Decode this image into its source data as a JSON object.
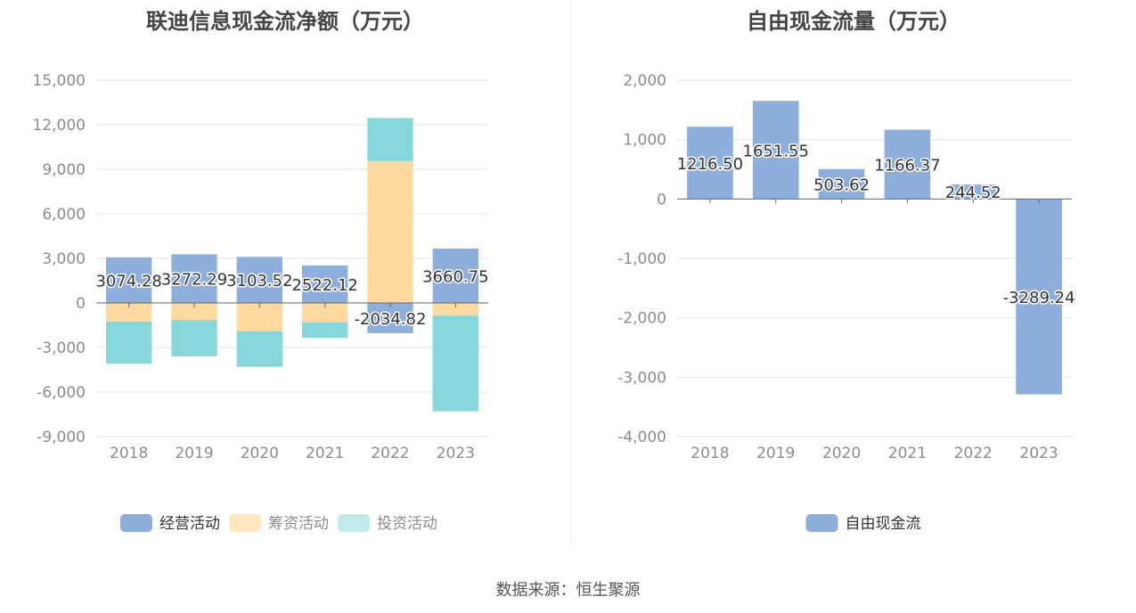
{
  "colors": {
    "operating": "#8eaedb",
    "financing": "#fed9a0",
    "investing": "#87d6d9",
    "free_cash": "#8eaedb",
    "grid": "#e3e6f0",
    "axis_text": "#8c8c8c",
    "title_text": "#444444"
  },
  "legend_icons": {
    "operating": "#8eaedb",
    "financing": "#ffe7c2",
    "investing": "#c3eaeb",
    "free_cash": "#8eaedb"
  },
  "footer": {
    "source": "数据来源：恒生聚源"
  },
  "chart_data": [
    {
      "type": "bar",
      "stacked": true,
      "title": "联迪信息现金流净额（万元）",
      "categories": [
        "2018",
        "2019",
        "2020",
        "2021",
        "2022",
        "2023"
      ],
      "ylim": [
        -9000,
        15000
      ],
      "yticks": [
        15000,
        12000,
        9000,
        6000,
        3000,
        0,
        -3000,
        -6000,
        -9000
      ],
      "ytick_labels": [
        "15,000",
        "12,000",
        "9,000",
        "6,000",
        "3,000",
        "0",
        "-3,000",
        "-6,000",
        "-9,000"
      ],
      "grid": true,
      "legend_position": "bottom",
      "series": [
        {
          "name": "经营活动",
          "key": "operating",
          "values": [
            3074.28,
            3272.29,
            3103.52,
            2522.12,
            -2034.82,
            3660.75
          ],
          "show_labels": true
        },
        {
          "name": "筹资活动",
          "key": "financing",
          "values": [
            -1250,
            -1150,
            -1900,
            -1300,
            9550,
            -850
          ],
          "show_labels": false
        },
        {
          "name": "投资活动",
          "key": "investing",
          "values": [
            -2850,
            -2450,
            -2400,
            -1050,
            2900,
            -6450
          ],
          "show_labels": false
        }
      ],
      "data_labels": [
        "3074.28",
        "3272.29",
        "3103.52",
        "2522.12",
        "-2034.82",
        "3660.75"
      ]
    },
    {
      "type": "bar",
      "title": "自由现金流量（万元）",
      "categories": [
        "2018",
        "2019",
        "2020",
        "2021",
        "2022",
        "2023"
      ],
      "ylim": [
        -4000,
        2000
      ],
      "yticks": [
        2000,
        1000,
        0,
        -1000,
        -2000,
        -3000,
        -4000
      ],
      "ytick_labels": [
        "2,000",
        "1,000",
        "0",
        "-1,000",
        "-2,000",
        "-3,000",
        "-4,000"
      ],
      "grid": true,
      "legend_position": "bottom",
      "series": [
        {
          "name": "自由现金流",
          "key": "free_cash",
          "values": [
            1216.5,
            1651.55,
            503.62,
            1166.37,
            244.52,
            -3289.24
          ],
          "show_labels": true
        }
      ],
      "data_labels": [
        "1216.50",
        "1651.55",
        "503.62",
        "1166.37",
        "244.52",
        "-3289.24"
      ]
    }
  ]
}
